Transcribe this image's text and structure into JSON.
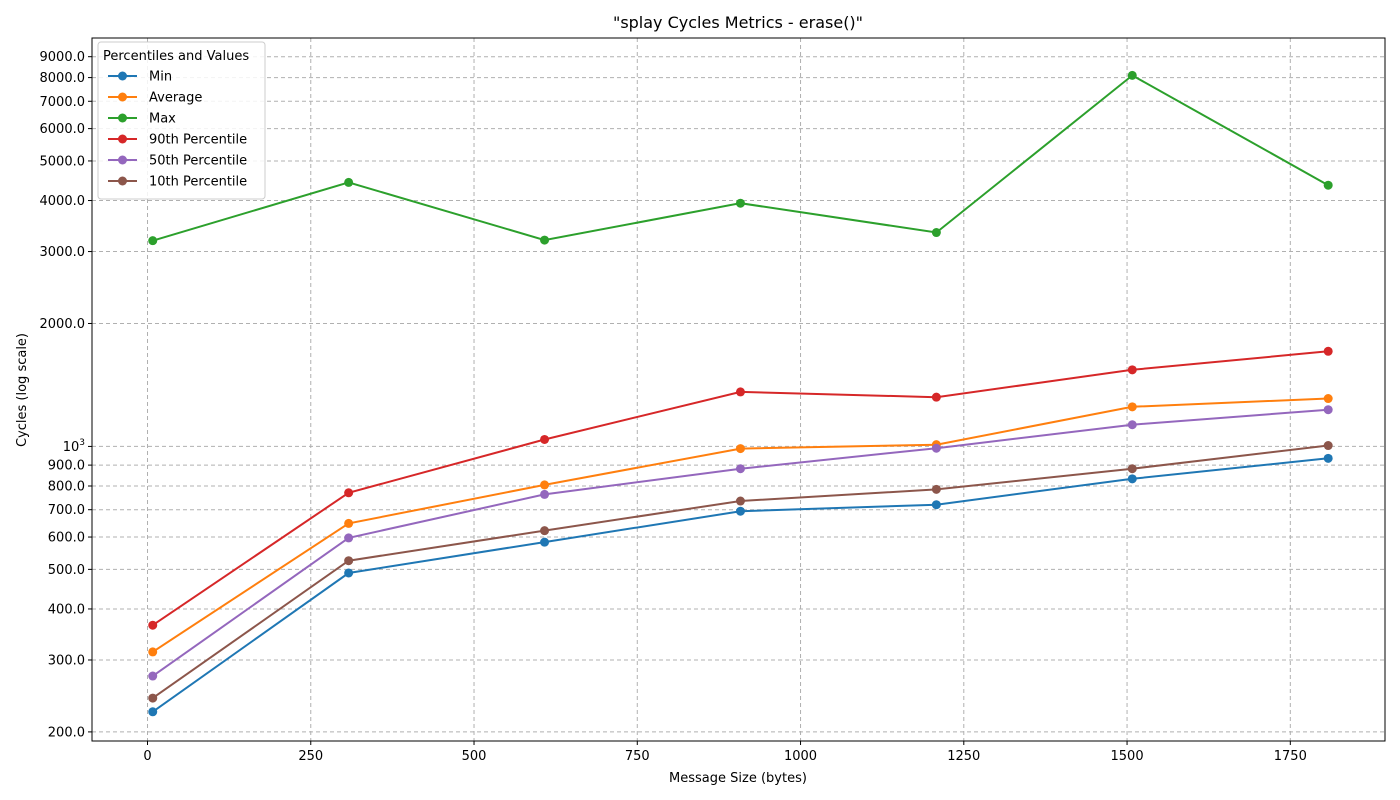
{
  "chart_data": {
    "type": "line",
    "title": "\"splay Cycles Metrics - erase()\"",
    "xlabel": "Message Size (bytes)",
    "ylabel": "Cycles (log scale)",
    "yscale": "log",
    "grid": true,
    "xlim": [
      -85,
      1895
    ],
    "ylim": [
      190,
      10000
    ],
    "x_ticks": [
      {
        "value": 0,
        "label": "0"
      },
      {
        "value": 250,
        "label": "250"
      },
      {
        "value": 500,
        "label": "500"
      },
      {
        "value": 750,
        "label": "750"
      },
      {
        "value": 1000,
        "label": "1000"
      },
      {
        "value": 1250,
        "label": "1250"
      },
      {
        "value": 1500,
        "label": "1500"
      },
      {
        "value": 1750,
        "label": "1750"
      }
    ],
    "y_ticks": [
      {
        "value": 200,
        "label": "200.0"
      },
      {
        "value": 300,
        "label": "300.0"
      },
      {
        "value": 400,
        "label": "400.0"
      },
      {
        "value": 500,
        "label": "500.0"
      },
      {
        "value": 600,
        "label": "600.0"
      },
      {
        "value": 700,
        "label": "700.0"
      },
      {
        "value": 800,
        "label": "800.0"
      },
      {
        "value": 900,
        "label": "900.0"
      },
      {
        "value": 1000,
        "label": "10",
        "sup": "3"
      },
      {
        "value": 2000,
        "label": "2000.0"
      },
      {
        "value": 3000,
        "label": "3000.0"
      },
      {
        "value": 4000,
        "label": "4000.0"
      },
      {
        "value": 5000,
        "label": "5000.0"
      },
      {
        "value": 6000,
        "label": "6000.0"
      },
      {
        "value": 7000,
        "label": "7000.0"
      },
      {
        "value": 8000,
        "label": "8000.0"
      },
      {
        "value": 9000,
        "label": "9000.0"
      }
    ],
    "legend_title": "Percentiles and Values",
    "legend_position": "top-left",
    "x": [
      8,
      308,
      608,
      908,
      1208,
      1508,
      1808
    ],
    "series": [
      {
        "name": "Min",
        "color": "#1f77b4",
        "values": [
          224,
          490,
          583,
          694,
          720,
          833,
          935
        ]
      },
      {
        "name": "Average",
        "color": "#ff7f0e",
        "values": [
          314,
          648,
          805,
          988,
          1010,
          1250,
          1310
        ]
      },
      {
        "name": "Max",
        "color": "#2ca02c",
        "values": [
          3190,
          4430,
          3200,
          3940,
          3340,
          8100,
          4360
        ]
      },
      {
        "name": "90th Percentile",
        "color": "#d62728",
        "values": [
          365,
          770,
          1040,
          1360,
          1320,
          1540,
          1710
        ]
      },
      {
        "name": "50th Percentile",
        "color": "#9467bd",
        "values": [
          274,
          597,
          763,
          882,
          990,
          1130,
          1230
        ]
      },
      {
        "name": "10th Percentile",
        "color": "#8c564b",
        "values": [
          242,
          525,
          622,
          735,
          785,
          882,
          1005
        ]
      }
    ]
  }
}
